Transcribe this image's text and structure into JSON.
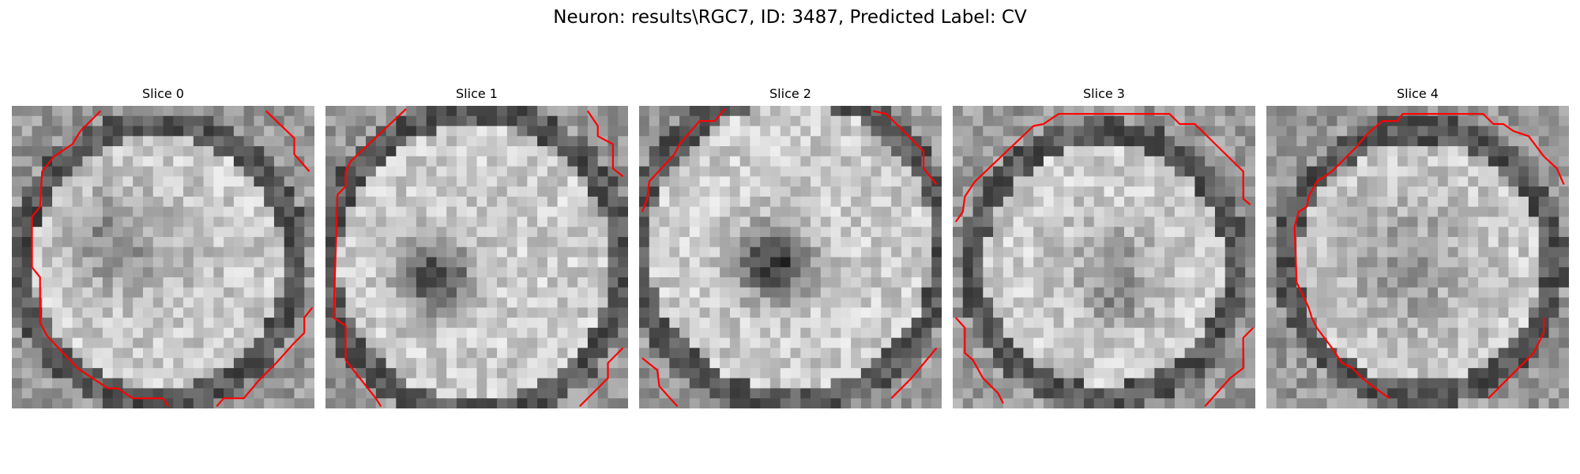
{
  "figure": {
    "title": "Neuron: results\\RGC7, ID: 3487, Predicted Label: CV"
  },
  "panels": [
    {
      "title": "Slice 0"
    },
    {
      "title": "Slice 1"
    },
    {
      "title": "Slice 2"
    },
    {
      "title": "Slice 3"
    },
    {
      "title": "Slice 4"
    }
  ],
  "colors": {
    "contour": "#ff0000",
    "colormap": "gray"
  }
}
